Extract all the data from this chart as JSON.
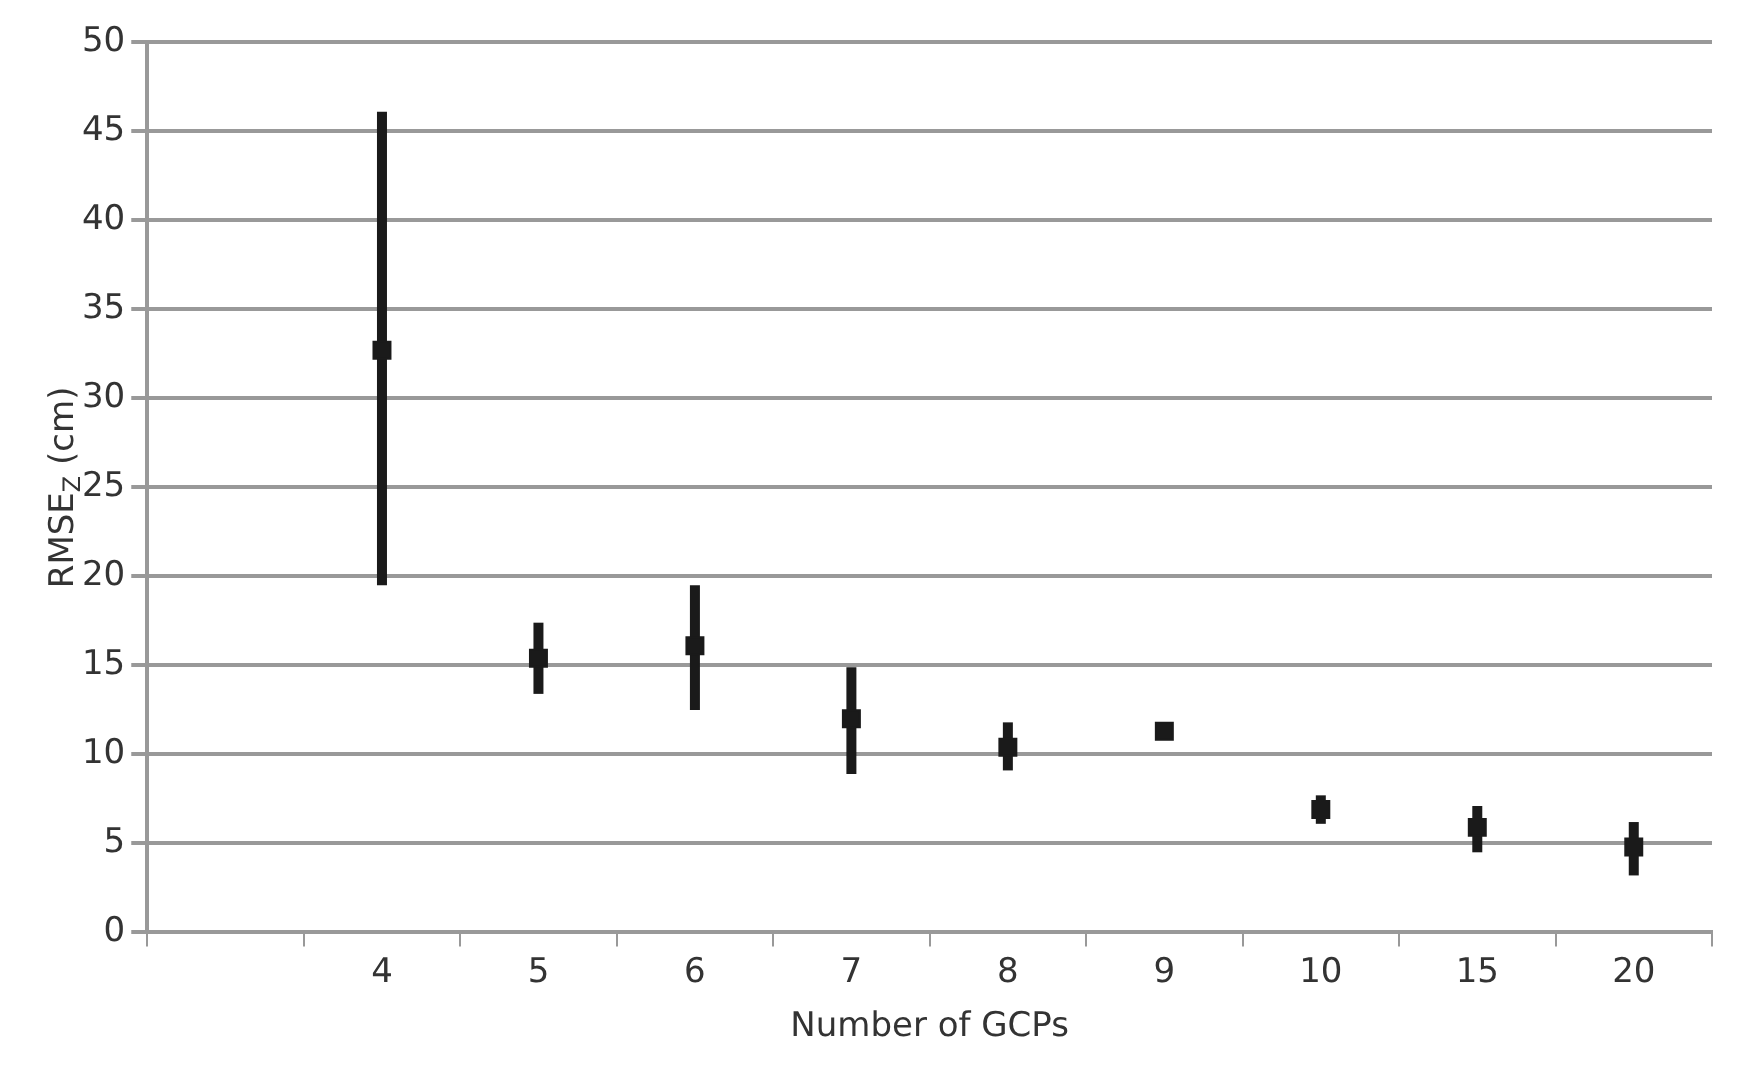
{
  "chart_data": {
    "type": "scatter",
    "xlabel": "Number of GCPs",
    "ylabel": "RMSE$_{Z}$ (cm)",
    "categories": [
      null,
      "4",
      "5",
      "6",
      "7",
      "8",
      "9",
      "10",
      "15",
      "20"
    ],
    "series": [
      {
        "color": "#1a1a1a",
        "values": [
          null,
          32.7,
          15.4,
          16.1,
          12.0,
          10.4,
          11.3,
          6.9,
          5.9,
          4.8
        ],
        "errors": [
          null,
          [
            19.5,
            46.1
          ],
          [
            13.4,
            17.4
          ],
          [
            12.5,
            19.5
          ],
          [
            8.9,
            14.9
          ],
          [
            9.1,
            11.8
          ],
          null,
          [
            6.1,
            7.7
          ],
          [
            4.5,
            7.1
          ],
          [
            3.2,
            6.2
          ]
        ]
      }
    ],
    "ylim": [
      0,
      50
    ],
    "yticks": [
      0,
      5,
      10,
      15,
      20,
      25,
      30,
      35,
      40,
      45,
      50
    ],
    "grid": "y",
    "legend": false,
    "marker": "square"
  }
}
